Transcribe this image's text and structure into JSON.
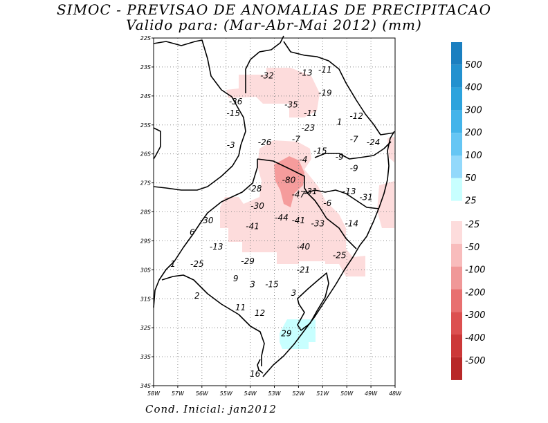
{
  "title_line1": "SIMOC - PREVISAO DE ANOMALIAS DE PRECIPITACAO",
  "title_line2": "Valido para: (Mar-Abr-Mai 2012) (mm)",
  "footer": "Cond. Inicial: jan2012",
  "map": {
    "lat_labels": [
      "22S",
      "23S",
      "24S",
      "25S",
      "26S",
      "27S",
      "28S",
      "29S",
      "30S",
      "31S",
      "32S",
      "33S",
      "34S"
    ],
    "lon_labels": [
      "58W",
      "57W",
      "56W",
      "55W",
      "54W",
      "53W",
      "52W",
      "51W",
      "50W",
      "49W",
      "48W"
    ],
    "lat_range": [
      -34,
      -22
    ],
    "lon_range": [
      -58,
      -48
    ],
    "grid": true,
    "anomaly_labels": [
      {
        "text": "-32",
        "lon": -53.3,
        "lat": -23.3
      },
      {
        "text": "-13",
        "lon": -51.7,
        "lat": -23.2
      },
      {
        "text": "-11",
        "lon": -50.9,
        "lat": -23.1
      },
      {
        "text": "-19",
        "lon": -50.9,
        "lat": -23.9
      },
      {
        "text": "-36",
        "lon": -54.6,
        "lat": -24.2
      },
      {
        "text": "-35",
        "lon": -52.3,
        "lat": -24.3
      },
      {
        "text": "-15",
        "lon": -54.7,
        "lat": -24.6
      },
      {
        "text": "-11",
        "lon": -51.5,
        "lat": -24.6
      },
      {
        "text": "-12",
        "lon": -49.6,
        "lat": -24.7
      },
      {
        "text": "1",
        "lon": -50.3,
        "lat": -24.9
      },
      {
        "text": "-23",
        "lon": -51.6,
        "lat": -25.1
      },
      {
        "text": "-7",
        "lon": -52.1,
        "lat": -25.5
      },
      {
        "text": "-7",
        "lon": -49.7,
        "lat": -25.5
      },
      {
        "text": "-24",
        "lon": -48.9,
        "lat": -25.6
      },
      {
        "text": "-3",
        "lon": -54.8,
        "lat": -25.7
      },
      {
        "text": "-26",
        "lon": -53.4,
        "lat": -25.6
      },
      {
        "text": "-15",
        "lon": -51.1,
        "lat": -25.9
      },
      {
        "text": "-9",
        "lon": -50.3,
        "lat": -26.1
      },
      {
        "text": "-4",
        "lon": -51.8,
        "lat": -26.2
      },
      {
        "text": "-9",
        "lon": -49.7,
        "lat": -26.5
      },
      {
        "text": "-80",
        "lon": -52.4,
        "lat": -26.9
      },
      {
        "text": "-28",
        "lon": -53.8,
        "lat": -27.2
      },
      {
        "text": "-31",
        "lon": -51.5,
        "lat": -27.3
      },
      {
        "text": "-13",
        "lon": -49.9,
        "lat": -27.3
      },
      {
        "text": "-47",
        "lon": -52.0,
        "lat": -27.4
      },
      {
        "text": "-31",
        "lon": -49.2,
        "lat": -27.5
      },
      {
        "text": "-6",
        "lon": -50.8,
        "lat": -27.7
      },
      {
        "text": "-30",
        "lon": -53.7,
        "lat": -27.8
      },
      {
        "text": "-44",
        "lon": -52.7,
        "lat": -28.2
      },
      {
        "text": "-41",
        "lon": -52.0,
        "lat": -28.3
      },
      {
        "text": "-30",
        "lon": -55.8,
        "lat": -28.3
      },
      {
        "text": "-41",
        "lon": -53.9,
        "lat": -28.5
      },
      {
        "text": "-33",
        "lon": -51.2,
        "lat": -28.4
      },
      {
        "text": "-14",
        "lon": -49.8,
        "lat": -28.4
      },
      {
        "text": "6",
        "lon": -56.4,
        "lat": -28.7
      },
      {
        "text": "-13",
        "lon": -55.4,
        "lat": -29.2
      },
      {
        "text": "-40",
        "lon": -51.8,
        "lat": -29.2
      },
      {
        "text": "-25",
        "lon": -50.3,
        "lat": -29.5
      },
      {
        "text": "-29",
        "lon": -54.1,
        "lat": -29.7
      },
      {
        "text": "-25",
        "lon": -56.2,
        "lat": -29.8
      },
      {
        "text": "1",
        "lon": -57.2,
        "lat": -29.8
      },
      {
        "text": "-21",
        "lon": -51.8,
        "lat": -30.0
      },
      {
        "text": "9",
        "lon": -54.6,
        "lat": -30.3
      },
      {
        "text": "3",
        "lon": -53.9,
        "lat": -30.5
      },
      {
        "text": "-15",
        "lon": -53.1,
        "lat": -30.5
      },
      {
        "text": "3",
        "lon": -52.2,
        "lat": -30.8
      },
      {
        "text": "2",
        "lon": -56.2,
        "lat": -30.9
      },
      {
        "text": "11",
        "lon": -54.4,
        "lat": -31.3
      },
      {
        "text": "12",
        "lon": -53.6,
        "lat": -31.5
      },
      {
        "text": "29",
        "lon": -52.5,
        "lat": -32.2
      },
      {
        "text": "16",
        "lon": -53.8,
        "lat": -33.6
      }
    ],
    "shaded_regions": [
      {
        "class": "-25 to -50",
        "color": "#fddcdc"
      },
      {
        "class": "-50 to -100",
        "color": "#f59c9c"
      },
      {
        "class": "25 to 50",
        "color": "#c8ffff"
      }
    ]
  },
  "legend": {
    "positive": [
      {
        "label": "500",
        "color": "#1b7fc0"
      },
      {
        "label": "400",
        "color": "#2391cf"
      },
      {
        "label": "300",
        "color": "#2da3dd"
      },
      {
        "label": "200",
        "color": "#44b4ea"
      },
      {
        "label": "100",
        "color": "#66c6f4"
      },
      {
        "label": "50",
        "color": "#93d9fb"
      },
      {
        "label": "25",
        "color": "#c8ffff"
      }
    ],
    "negative": [
      {
        "label": "-25",
        "color": "#fddcdc"
      },
      {
        "label": "-50",
        "color": "#f8bcbc"
      },
      {
        "label": "-100",
        "color": "#f09898"
      },
      {
        "label": "-200",
        "color": "#e87070"
      },
      {
        "label": "-300",
        "color": "#dc5050"
      },
      {
        "label": "-400",
        "color": "#cc3838"
      },
      {
        "label": "-500",
        "color": "#b82828"
      }
    ],
    "negative_bottom_color": "#a81e1e"
  }
}
